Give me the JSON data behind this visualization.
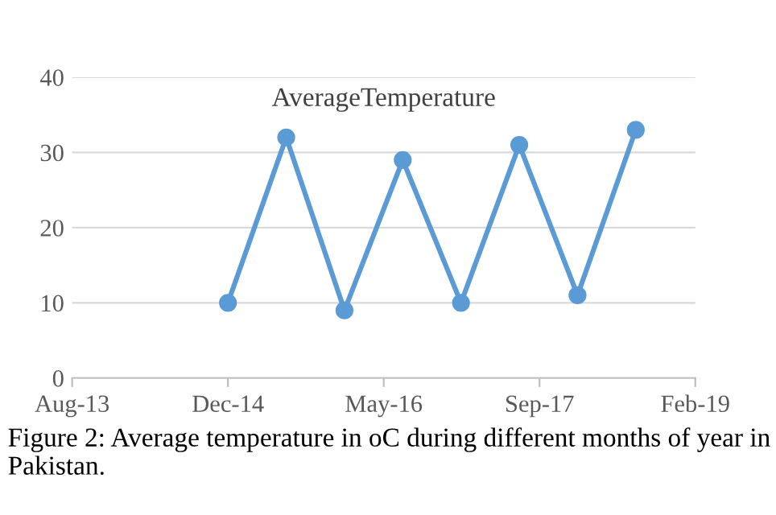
{
  "chart_data": {
    "type": "line",
    "title": "AverageTemperature",
    "x": [
      "2014-12-28",
      "2015-07-03",
      "2016-01-06",
      "2016-07-11",
      "2017-01-14",
      "2017-07-20",
      "2018-01-23",
      "2018-07-29"
    ],
    "series": [
      {
        "color": "#5b9bd5",
        "values": [
          10,
          32,
          9,
          29,
          10,
          31,
          11,
          33
        ]
      }
    ],
    "xlim": [
      "2013-08-15",
      "2019-02-05"
    ],
    "xticks": [
      {
        "value": "2013-08-15",
        "label": "Aug-13"
      },
      {
        "value": "2014-12-28",
        "label": "Dec-14"
      },
      {
        "value": "2016-05-11",
        "label": "May-16"
      },
      {
        "value": "2017-09-23",
        "label": "Sep-17"
      },
      {
        "value": "2019-02-05",
        "label": "Feb-19"
      }
    ],
    "ylim": [
      0,
      40
    ],
    "yticks": [
      0,
      10,
      20,
      30,
      40
    ],
    "grid": "y",
    "marker": "circle",
    "line_style": "solid",
    "annotations": [
      "Figure 2: Average temperature in oC during different months of year in Pakistan."
    ]
  }
}
